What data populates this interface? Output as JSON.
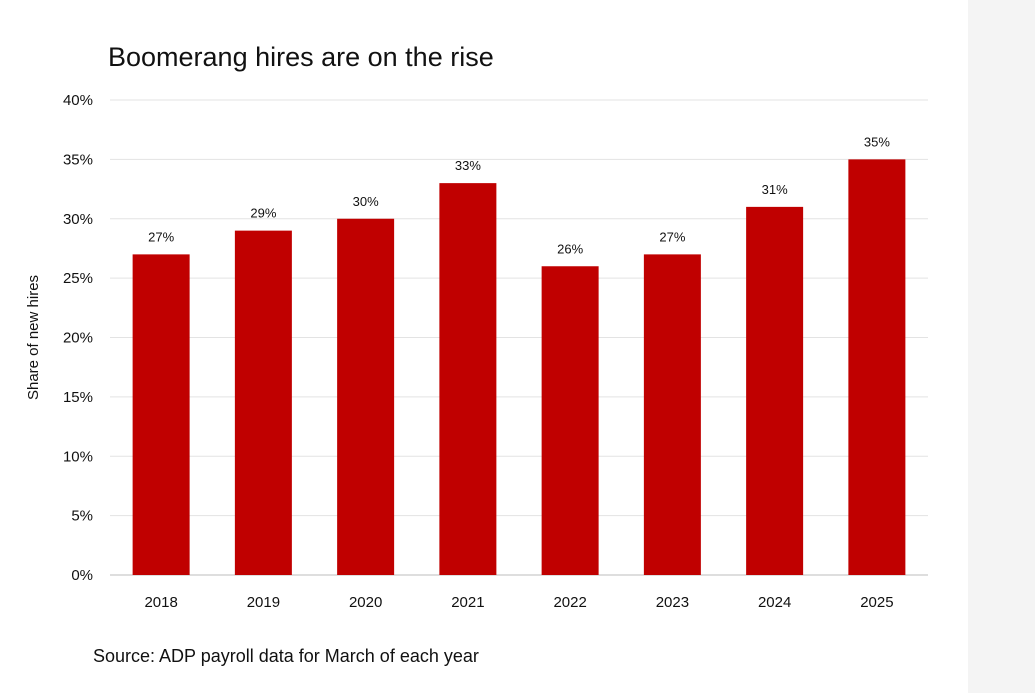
{
  "chart_data": {
    "type": "bar",
    "title": "Boomerang hires are on the rise",
    "xlabel": "",
    "ylabel": "Share of new hires",
    "categories": [
      "2018",
      "2019",
      "2020",
      "2021",
      "2022",
      "2023",
      "2024",
      "2025"
    ],
    "values": [
      27,
      29,
      30,
      33,
      26,
      27,
      31,
      35
    ],
    "data_labels": [
      "27%",
      "29%",
      "30%",
      "33%",
      "26%",
      "27%",
      "31%",
      "35%"
    ],
    "ylim": [
      0,
      40
    ],
    "y_ticks": [
      0,
      5,
      10,
      15,
      20,
      25,
      30,
      35,
      40
    ],
    "y_tick_labels": [
      "0%",
      "5%",
      "10%",
      "15%",
      "20%",
      "25%",
      "30%",
      "35%",
      "40%"
    ],
    "grid": true,
    "legend": "none",
    "bar_color": "#c00000",
    "source": "Source: ADP payroll data for March of each year"
  }
}
